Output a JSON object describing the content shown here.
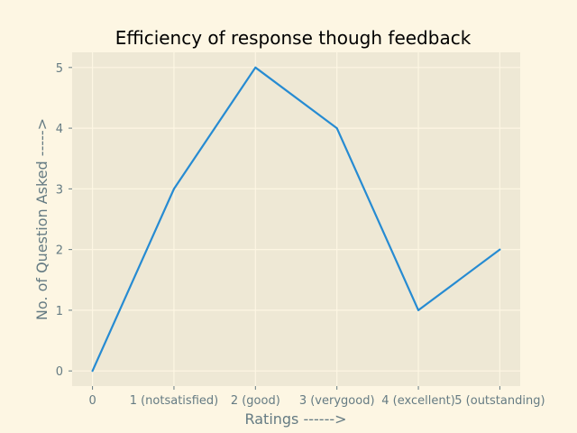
{
  "chart_data": {
    "type": "line",
    "title": "Efficiency of response though feedback",
    "xlabel": "Ratings ------>",
    "ylabel": "No. of Question Asked ----->",
    "categories": [
      "0",
      "1 (notsatisfied)",
      "2 (good)",
      "3 (verygood)",
      "4 (excellent)",
      "5 (outstanding)"
    ],
    "x": [
      0,
      1,
      2,
      3,
      4,
      5
    ],
    "series": [
      {
        "values": [
          0,
          3,
          5,
          4,
          1,
          2
        ]
      }
    ],
    "xlim": [
      -0.25,
      5.25
    ],
    "ylim": [
      -0.25,
      5.25
    ],
    "yticks": [
      0,
      1,
      2,
      3,
      4,
      5
    ],
    "grid": true,
    "colors": {
      "figure_bg": "#fdf6e3",
      "axes_bg": "#eee8d5",
      "line": "#268bd2",
      "text": "#657b83"
    }
  }
}
